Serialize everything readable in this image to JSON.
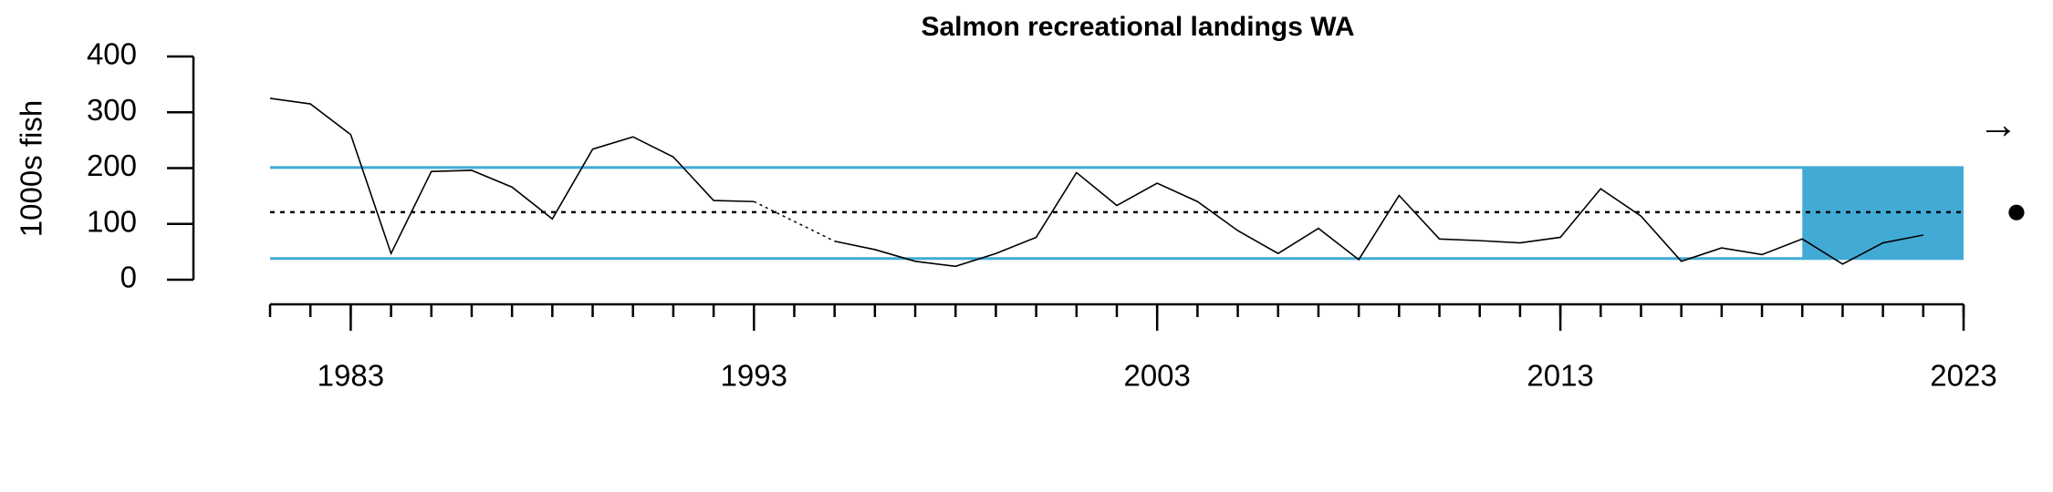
{
  "chart_data": {
    "type": "line",
    "title": "Salmon recreational landings WA",
    "y_label": "1000s fish",
    "x": [
      1981,
      1982,
      1983,
      1984,
      1985,
      1986,
      1987,
      1988,
      1989,
      1990,
      1991,
      1992,
      1993,
      1994,
      1995,
      1996,
      1997,
      1998,
      1999,
      2000,
      2001,
      2002,
      2003,
      2004,
      2005,
      2006,
      2007,
      2008,
      2009,
      2010,
      2011,
      2012,
      2013,
      2014,
      2015,
      2016,
      2017,
      2018,
      2019,
      2020,
      2021,
      2022
    ],
    "series": [
      {
        "name": "Salmon recreational landings WA",
        "color": "#000000",
        "values": [
          325,
          315,
          260,
          47,
          194,
          196,
          166,
          109,
          234,
          256,
          220,
          142,
          140,
          null,
          69,
          54,
          33,
          24,
          47,
          76,
          192,
          133,
          173,
          140,
          88,
          47,
          92,
          36,
          151,
          73,
          70,
          66,
          76,
          163,
          114,
          33,
          57,
          45,
          73,
          28,
          66,
          80
        ]
      }
    ],
    "mean": 121,
    "upper": 201,
    "lower": 38,
    "band_color": "#41abd6",
    "shade_x": [
      2019,
      2023
    ],
    "xlim": [
      1981,
      2023
    ],
    "xticks": [
      1983,
      1993,
      2003,
      2013,
      2023
    ],
    "ylim": [
      0,
      400
    ],
    "yticks": [
      0,
      100,
      200,
      300,
      400
    ],
    "trend_symbol": "→",
    "mean_symbol": "●"
  }
}
